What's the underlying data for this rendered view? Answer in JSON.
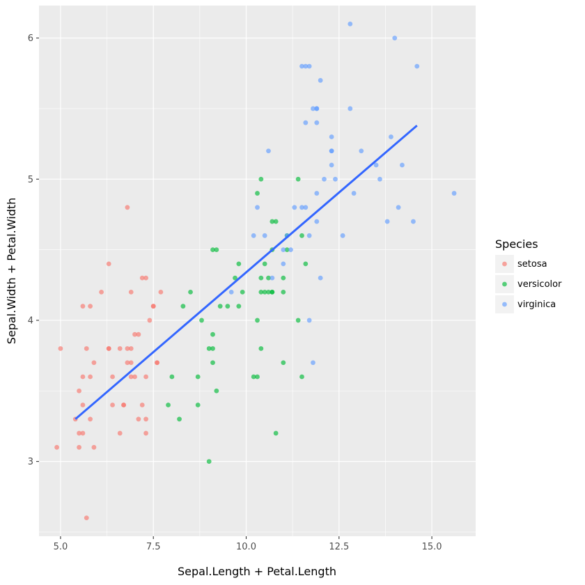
{
  "chart_data": {
    "type": "scatter",
    "title": "",
    "xlabel": "Sepal.Length + Petal.Length",
    "ylabel": "Sepal.Width + Petal.Width",
    "xlim": [
      4.42,
      16.18
    ],
    "ylim": [
      2.47,
      6.23
    ],
    "x_ticks": [
      5.0,
      7.5,
      10.0,
      12.5,
      15.0
    ],
    "x_tick_labels": [
      "5.0",
      "7.5",
      "10.0",
      "12.5",
      "15.0"
    ],
    "y_ticks": [
      3,
      4,
      5,
      6
    ],
    "y_tick_labels": [
      "3",
      "4",
      "5",
      "6"
    ],
    "grid": true,
    "legend": {
      "title": "Species",
      "placement": "right"
    },
    "colors": {
      "setosa": "#F8766D",
      "versicolor": "#00BA38",
      "virginica": "#619CFF",
      "trend": "#3366FF",
      "panel": "#EBEBEB"
    },
    "series": [
      {
        "name": "setosa",
        "points": [
          [
            4.9,
            3.1
          ],
          [
            5.0,
            3.8
          ],
          [
            5.4,
            3.3
          ],
          [
            5.5,
            3.1
          ],
          [
            5.5,
            3.2
          ],
          [
            5.5,
            3.5
          ],
          [
            5.6,
            3.4
          ],
          [
            5.6,
            3.6
          ],
          [
            5.6,
            4.1
          ],
          [
            5.6,
            3.2
          ],
          [
            5.7,
            2.6
          ],
          [
            5.7,
            3.8
          ],
          [
            5.8,
            3.6
          ],
          [
            5.8,
            4.1
          ],
          [
            5.8,
            3.3
          ],
          [
            5.9,
            3.7
          ],
          [
            5.9,
            3.1
          ],
          [
            6.1,
            4.2
          ],
          [
            6.3,
            3.8
          ],
          [
            6.3,
            3.8
          ],
          [
            6.3,
            4.4
          ],
          [
            6.4,
            3.4
          ],
          [
            6.4,
            3.6
          ],
          [
            6.6,
            3.2
          ],
          [
            6.6,
            3.8
          ],
          [
            6.7,
            3.4
          ],
          [
            6.7,
            3.4
          ],
          [
            6.8,
            3.8
          ],
          [
            6.8,
            4.8
          ],
          [
            6.8,
            3.7
          ],
          [
            6.9,
            3.7
          ],
          [
            6.9,
            4.2
          ],
          [
            6.9,
            3.6
          ],
          [
            6.9,
            3.8
          ],
          [
            7.0,
            3.9
          ],
          [
            7.0,
            3.6
          ],
          [
            7.1,
            3.3
          ],
          [
            7.1,
            3.9
          ],
          [
            7.2,
            3.4
          ],
          [
            7.2,
            4.3
          ],
          [
            7.3,
            4.3
          ],
          [
            7.3,
            3.6
          ],
          [
            7.3,
            3.3
          ],
          [
            7.3,
            3.2
          ],
          [
            7.4,
            4.0
          ],
          [
            7.5,
            4.1
          ],
          [
            7.5,
            4.1
          ],
          [
            7.6,
            3.7
          ],
          [
            7.6,
            3.7
          ],
          [
            7.7,
            4.2
          ]
        ]
      },
      {
        "name": "versicolor",
        "points": [
          [
            7.9,
            3.4
          ],
          [
            8.0,
            3.6
          ],
          [
            8.2,
            3.3
          ],
          [
            8.3,
            4.1
          ],
          [
            8.5,
            4.2
          ],
          [
            8.7,
            3.6
          ],
          [
            8.7,
            3.4
          ],
          [
            8.8,
            4.0
          ],
          [
            9.0,
            3.0
          ],
          [
            9.0,
            3.8
          ],
          [
            9.1,
            4.5
          ],
          [
            9.1,
            3.9
          ],
          [
            9.1,
            3.8
          ],
          [
            9.1,
            3.7
          ],
          [
            9.2,
            4.5
          ],
          [
            9.2,
            3.5
          ],
          [
            9.3,
            4.1
          ],
          [
            9.5,
            4.1
          ],
          [
            9.7,
            4.3
          ],
          [
            9.8,
            4.1
          ],
          [
            9.8,
            4.4
          ],
          [
            9.9,
            4.2
          ],
          [
            10.2,
            3.6
          ],
          [
            10.3,
            4.0
          ],
          [
            10.3,
            4.9
          ],
          [
            10.3,
            3.6
          ],
          [
            10.4,
            5.0
          ],
          [
            10.4,
            3.8
          ],
          [
            10.4,
            4.3
          ],
          [
            10.4,
            4.2
          ],
          [
            10.5,
            4.2
          ],
          [
            10.5,
            4.4
          ],
          [
            10.6,
            4.3
          ],
          [
            10.6,
            4.2
          ],
          [
            10.7,
            4.5
          ],
          [
            10.7,
            4.7
          ],
          [
            10.7,
            4.2
          ],
          [
            10.7,
            4.2
          ],
          [
            10.8,
            4.7
          ],
          [
            10.8,
            3.2
          ],
          [
            11.0,
            4.2
          ],
          [
            11.0,
            3.7
          ],
          [
            11.0,
            4.3
          ],
          [
            11.1,
            4.5
          ],
          [
            11.1,
            4.6
          ],
          [
            11.4,
            4.0
          ],
          [
            11.4,
            5.0
          ],
          [
            11.5,
            4.6
          ],
          [
            11.5,
            3.6
          ],
          [
            11.6,
            4.4
          ]
        ]
      },
      {
        "name": "virginica",
        "points": [
          [
            9.6,
            4.2
          ],
          [
            10.2,
            4.6
          ],
          [
            10.3,
            4.8
          ],
          [
            10.5,
            4.6
          ],
          [
            10.6,
            5.2
          ],
          [
            10.7,
            4.3
          ],
          [
            11.0,
            4.4
          ],
          [
            11.0,
            4.5
          ],
          [
            11.1,
            4.6
          ],
          [
            11.2,
            4.5
          ],
          [
            11.3,
            4.8
          ],
          [
            11.5,
            4.8
          ],
          [
            11.5,
            5.8
          ],
          [
            11.6,
            4.8
          ],
          [
            11.6,
            5.4
          ],
          [
            11.6,
            5.8
          ],
          [
            11.7,
            4.6
          ],
          [
            11.7,
            4.0
          ],
          [
            11.7,
            5.8
          ],
          [
            11.8,
            3.7
          ],
          [
            11.8,
            5.5
          ],
          [
            11.9,
            4.9
          ],
          [
            11.9,
            4.7
          ],
          [
            11.9,
            5.5
          ],
          [
            11.9,
            5.5
          ],
          [
            11.9,
            5.4
          ],
          [
            12.0,
            4.3
          ],
          [
            12.0,
            5.7
          ],
          [
            12.1,
            5.0
          ],
          [
            12.3,
            5.2
          ],
          [
            12.3,
            5.1
          ],
          [
            12.3,
            5.3
          ],
          [
            12.3,
            5.2
          ],
          [
            12.4,
            5.0
          ],
          [
            12.6,
            4.6
          ],
          [
            12.8,
            6.1
          ],
          [
            12.8,
            5.5
          ],
          [
            12.9,
            4.9
          ],
          [
            13.1,
            5.2
          ],
          [
            13.5,
            5.1
          ],
          [
            13.6,
            5.0
          ],
          [
            13.8,
            4.7
          ],
          [
            13.9,
            5.3
          ],
          [
            14.0,
            6.0
          ],
          [
            14.1,
            4.8
          ],
          [
            14.2,
            5.1
          ],
          [
            14.5,
            4.7
          ],
          [
            14.6,
            5.8
          ],
          [
            15.6,
            4.9
          ]
        ]
      }
    ],
    "trendline": {
      "name": "linear fit",
      "x": [
        5.4,
        14.6
      ],
      "y": [
        3.3,
        5.38
      ]
    }
  }
}
